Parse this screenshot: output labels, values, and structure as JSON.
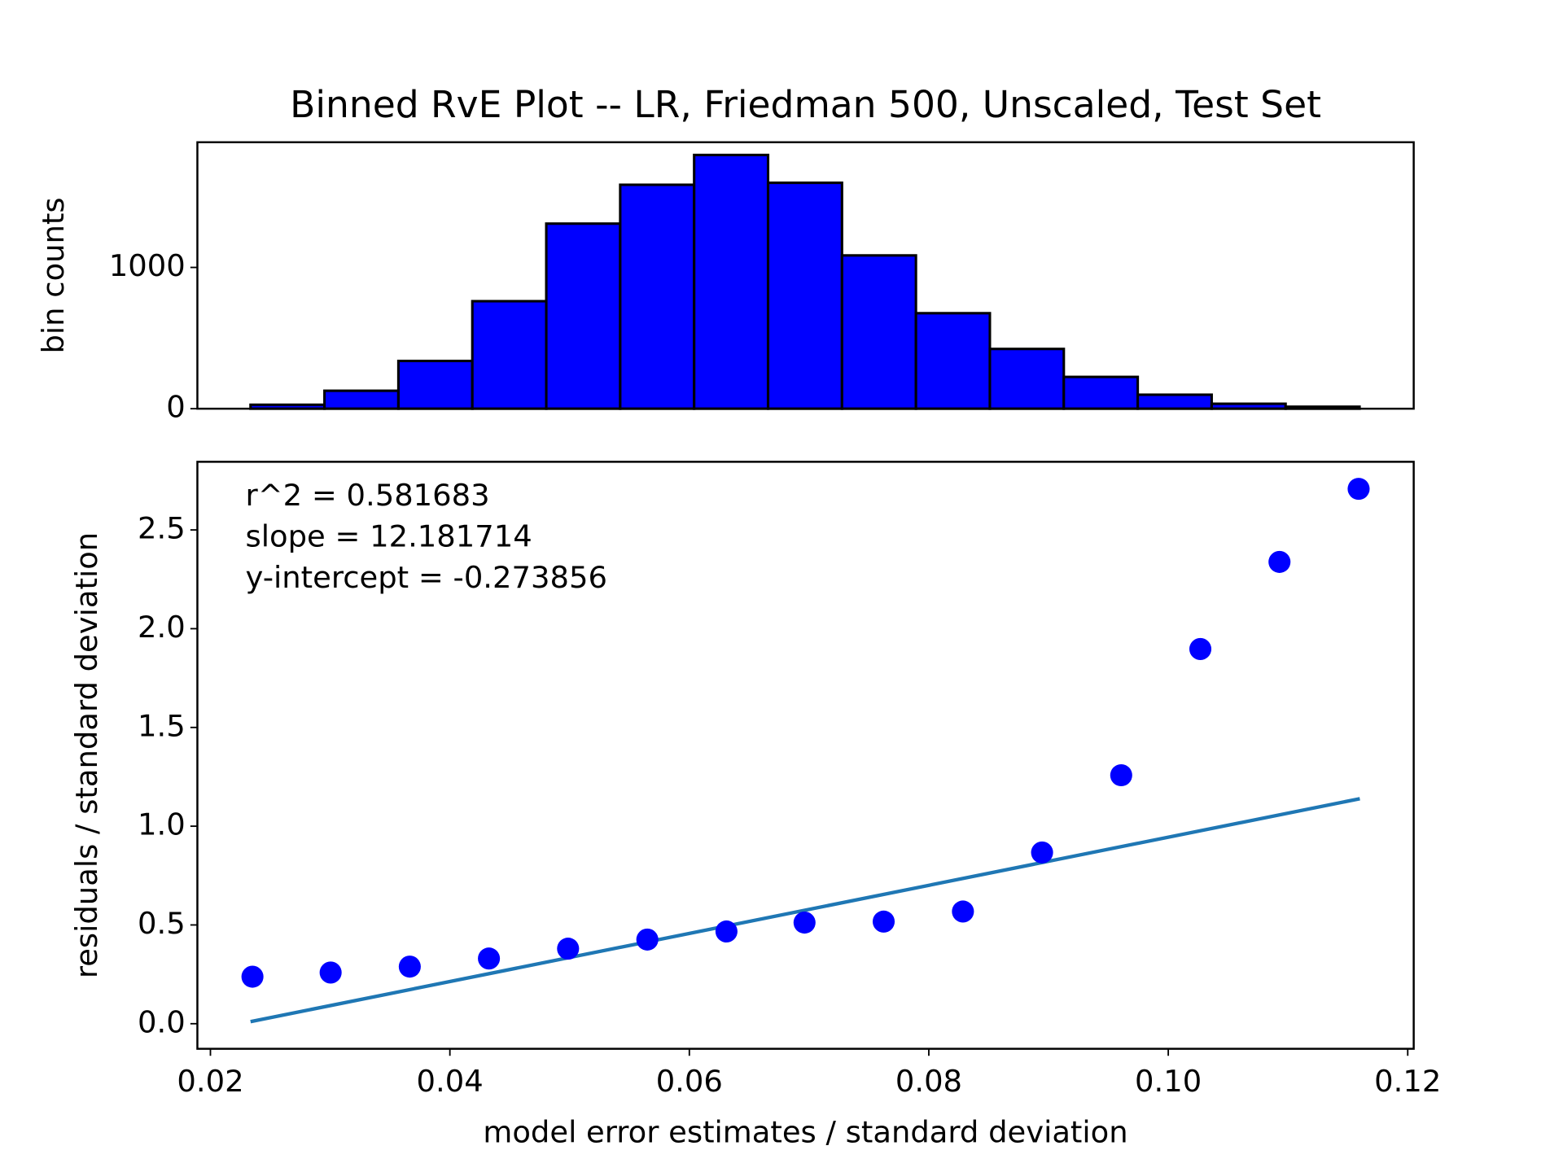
{
  "title": "Binned RvE Plot -- LR, Friedman 500, Unscaled, Test Set",
  "chart_data": [
    {
      "type": "histogram",
      "ylabel": "bin counts",
      "bins": [
        0.02335,
        0.029525,
        0.0357,
        0.041875,
        0.04805,
        0.054225,
        0.0604,
        0.066575,
        0.07275,
        0.078925,
        0.0851,
        0.091275,
        0.09745,
        0.103625,
        0.1098,
        0.115975
      ],
      "values": [
        28,
        127,
        338,
        761,
        1310,
        1585,
        1796,
        1599,
        1085,
        676,
        423,
        225,
        99,
        35,
        14
      ],
      "color": "#0000ff",
      "edgecolor": "#000000",
      "xlim": [
        0.01891,
        0.1205
      ],
      "ylim": [
        0,
        1886
      ],
      "yticks": [
        0,
        1000
      ]
    },
    {
      "type": "scatter",
      "xlabel": "model error estimates / standard deviation",
      "ylabel": "residuals / standard deviation",
      "annotations": [
        "r^2 = 0.581683",
        "slope = 12.181714",
        "y-intercept = -0.273856"
      ],
      "points": {
        "x": [
          0.02351,
          0.03004,
          0.03665,
          0.04326,
          0.04987,
          0.05649,
          0.0631,
          0.06962,
          0.07623,
          0.08285,
          0.08946,
          0.09607,
          0.10268,
          0.10929,
          0.1159
        ],
        "y": [
          0.238,
          0.259,
          0.289,
          0.33,
          0.38,
          0.426,
          0.467,
          0.512,
          0.517,
          0.568,
          0.867,
          1.258,
          1.897,
          2.338,
          2.708
        ],
        "color": "#0000ff"
      },
      "fit_line": {
        "x": [
          0.02335,
          0.116
        ],
        "y": [
          0.0106,
          1.1392
        ],
        "color": "#1f77b4"
      },
      "xlim": [
        0.01891,
        0.1205
      ],
      "ylim": [
        -0.127,
        2.845
      ],
      "xticks": [
        {
          "value": 0.02,
          "label": "0.02"
        },
        {
          "value": 0.04,
          "label": "0.04"
        },
        {
          "value": 0.06,
          "label": "0.06"
        },
        {
          "value": 0.08,
          "label": "0.08"
        },
        {
          "value": 0.1,
          "label": "0.10"
        },
        {
          "value": 0.12,
          "label": "0.12"
        }
      ],
      "yticks": [
        {
          "value": 0,
          "label": "0.0"
        },
        0.5,
        {
          "value": 1,
          "label": "1.0"
        },
        1.5,
        {
          "value": 2,
          "label": "2.0"
        },
        2.5
      ]
    }
  ]
}
